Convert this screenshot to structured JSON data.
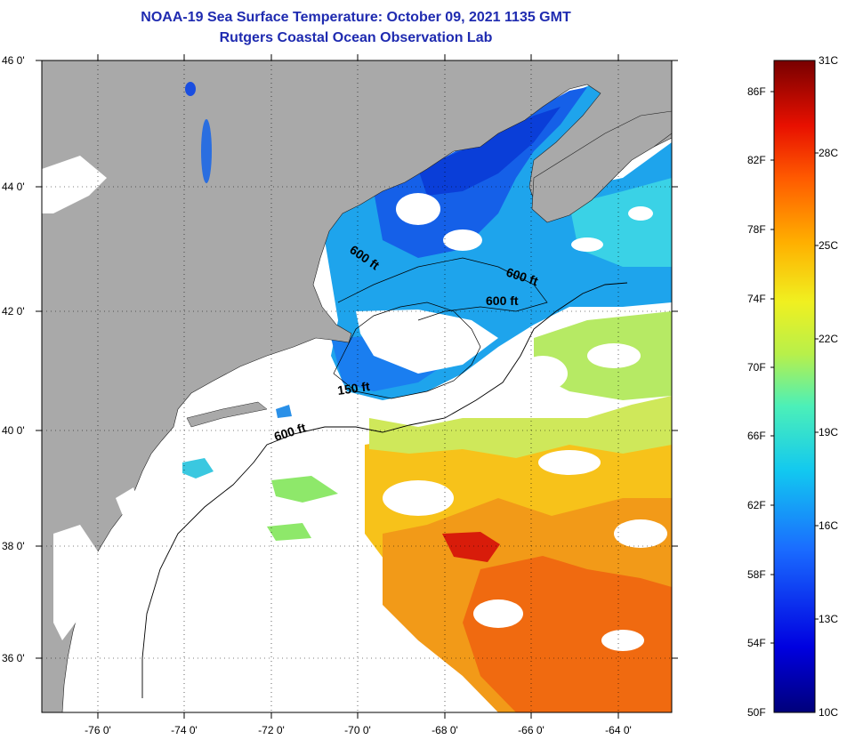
{
  "title": "NOAA-19 Sea Surface Temperature:  October 09, 2021 1135 GMT",
  "subtitle": "Rutgers Coastal Ocean Observation Lab",
  "colors": {
    "land": "#a9a9a9",
    "cloud": "#ffffff",
    "title": "#1f2bb0"
  },
  "lat_labels": [
    "46 0'",
    "44 0'",
    "42 0'",
    "40 0'",
    "38 0'",
    "36 0'"
  ],
  "lon_labels": [
    "-76 0'",
    "-74 0'",
    "-72 0'",
    "-70 0'",
    "-68 0'",
    "-66 0'",
    "-64 0'"
  ],
  "depth_labels": [
    "600 ft",
    "600 ft",
    "600 ft",
    "150 ft",
    "600 ft"
  ],
  "colorbar": {
    "fahrenheit": [
      "86F",
      "82F",
      "78F",
      "74F",
      "70F",
      "66F",
      "62F",
      "58F",
      "54F",
      "50F"
    ],
    "celsius": [
      "31C",
      "28C",
      "25C",
      "22C",
      "19C",
      "16C",
      "13C",
      "10C"
    ]
  }
}
